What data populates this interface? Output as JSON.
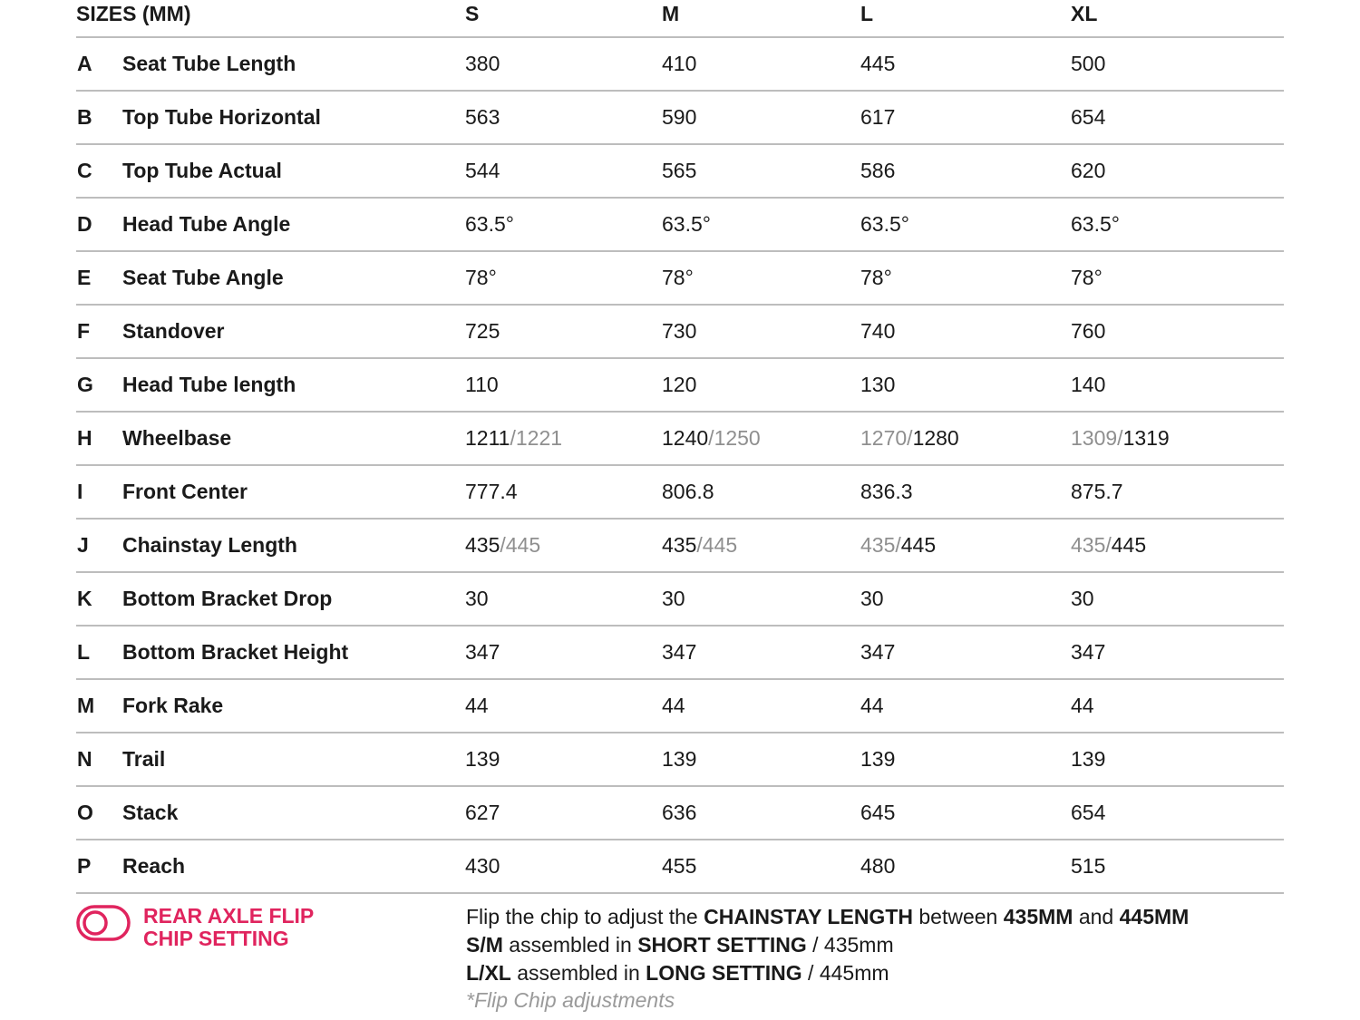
{
  "header": {
    "title": "SIZES (MM)",
    "sizes": [
      "S",
      "M",
      "L",
      "XL"
    ]
  },
  "rows": [
    {
      "letter": "A",
      "label": "Seat Tube Length",
      "values": [
        "380",
        "410",
        "445",
        "500"
      ]
    },
    {
      "letter": "B",
      "label": "Top Tube Horizontal",
      "values": [
        "563",
        "590",
        "617",
        "654"
      ]
    },
    {
      "letter": "C",
      "label": "Top Tube Actual",
      "values": [
        "544",
        "565",
        "586",
        "620"
      ]
    },
    {
      "letter": "D",
      "label": "Head Tube Angle",
      "values": [
        "63.5°",
        "63.5°",
        "63.5°",
        "63.5°"
      ]
    },
    {
      "letter": "E",
      "label": "Seat Tube Angle",
      "values": [
        "78°",
        "78°",
        "78°",
        "78°"
      ]
    },
    {
      "letter": "F",
      "label": "Standover",
      "values": [
        "725",
        "730",
        "740",
        "760"
      ]
    },
    {
      "letter": "G",
      "label": "Head Tube length",
      "values": [
        "110",
        "120",
        "130",
        "140"
      ]
    },
    {
      "letter": "H",
      "label": "Wheelbase",
      "values": [
        {
          "short": "1211",
          "long": "1221",
          "active": "short"
        },
        {
          "short": "1240",
          "long": "1250",
          "active": "short"
        },
        {
          "short": "1270",
          "long": "1280",
          "active": "long"
        },
        {
          "short": "1309",
          "long": "1319",
          "active": "long"
        }
      ]
    },
    {
      "letter": "I",
      "label": "Front Center",
      "values": [
        "777.4",
        "806.8",
        "836.3",
        "875.7"
      ]
    },
    {
      "letter": "J",
      "label": "Chainstay Length",
      "values": [
        {
          "short": "435",
          "long": "445",
          "active": "short"
        },
        {
          "short": "435",
          "long": "445",
          "active": "short"
        },
        {
          "short": "435",
          "long": "445",
          "active": "long"
        },
        {
          "short": "435",
          "long": "445",
          "active": "long"
        }
      ]
    },
    {
      "letter": "K",
      "label": "Bottom Bracket Drop",
      "values": [
        "30",
        "30",
        "30",
        "30"
      ]
    },
    {
      "letter": "L",
      "label": "Bottom Bracket Height",
      "values": [
        "347",
        "347",
        "347",
        "347"
      ]
    },
    {
      "letter": "M",
      "label": "Fork Rake",
      "values": [
        "44",
        "44",
        "44",
        "44"
      ]
    },
    {
      "letter": "N",
      "label": "Trail",
      "values": [
        "139",
        "139",
        "139",
        "139"
      ]
    },
    {
      "letter": "O",
      "label": "Stack",
      "values": [
        "627",
        "636",
        "645",
        "654"
      ]
    },
    {
      "letter": "P",
      "label": "Reach",
      "values": [
        "430",
        "455",
        "480",
        "515"
      ]
    }
  ],
  "footer": {
    "chip_title_line1": "REAR AXLE FLIP",
    "chip_title_line2": "CHIP SETTING",
    "accent_color": "#e0245e",
    "icon": "toggle-icon",
    "lines": [
      [
        {
          "t": "Flip the chip to adjust the ",
          "b": false
        },
        {
          "t": "CHAINSTAY LENGTH",
          "b": true
        },
        {
          "t": " between ",
          "b": false
        },
        {
          "t": "435MM",
          "b": true
        },
        {
          "t": " and ",
          "b": false
        },
        {
          "t": "445MM",
          "b": true
        }
      ],
      [
        {
          "t": "S/M",
          "b": true
        },
        {
          "t": " assembled in ",
          "b": false
        },
        {
          "t": "SHORT SETTING",
          "b": true
        },
        {
          "t": " / 435mm",
          "b": false
        }
      ],
      [
        {
          "t": "L/XL",
          "b": true
        },
        {
          "t": " assembled in ",
          "b": false
        },
        {
          "t": "LONG SETTING",
          "b": true
        },
        {
          "t": " / 445mm",
          "b": false
        }
      ]
    ],
    "note": "*Flip Chip adjustments"
  }
}
